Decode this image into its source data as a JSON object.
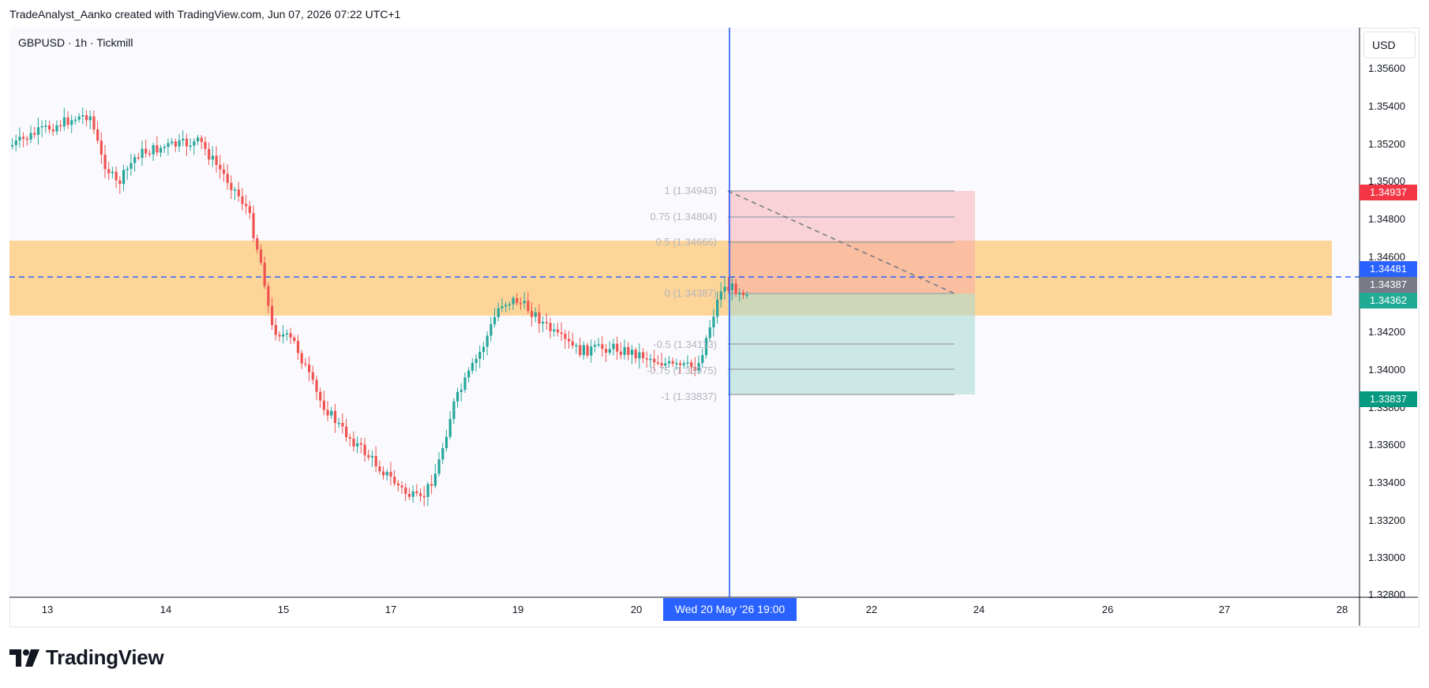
{
  "header": {
    "text": "TradeAnalyst_Aanko created with TradingView.com, Jun 07, 2026 07:22 UTC+1"
  },
  "symbol": {
    "text": "GBPUSD · 1h · Tickmill"
  },
  "currency": "USD",
  "y_axis_labels": [
    "1.35600",
    "1.35400",
    "1.35200",
    "1.35000",
    "1.34800",
    "1.34600",
    "1.34200",
    "1.34000",
    "1.33800",
    "1.33600",
    "1.33400",
    "1.33200",
    "1.33000",
    "1.32800"
  ],
  "x_axis_labels": [
    "13",
    "14",
    "15",
    "17",
    "19",
    "20",
    "22",
    "24",
    "26",
    "27",
    "28"
  ],
  "crosshair": {
    "time_label": "Wed 20 May '26   19:00"
  },
  "price_tags": [
    {
      "value": "1.34937",
      "color": "#f23645"
    },
    {
      "value": "1.34481",
      "color": "#2962ff"
    },
    {
      "value": "1.34387",
      "color": "#787b86"
    },
    {
      "value": "1.34362",
      "color": "#22ab94"
    },
    {
      "value": "1.33837",
      "color": "#089981"
    }
  ],
  "fib_levels": [
    {
      "label": "1 (1.34943)"
    },
    {
      "label": "0.75 (1.34804)"
    },
    {
      "label": "0.5 (1.34666)"
    },
    {
      "label": "0 (1.34387)"
    },
    {
      "label": "-0.5 (1.34113)"
    },
    {
      "label": "-0.75 (1.33975)"
    },
    {
      "label": "-1 (1.33837)"
    }
  ],
  "colors": {
    "up": "#26a69a",
    "down": "#ef5350",
    "zone": "#ffcc80",
    "crosshair": "#2962ff"
  },
  "brand": {
    "name": "TradingView"
  }
}
